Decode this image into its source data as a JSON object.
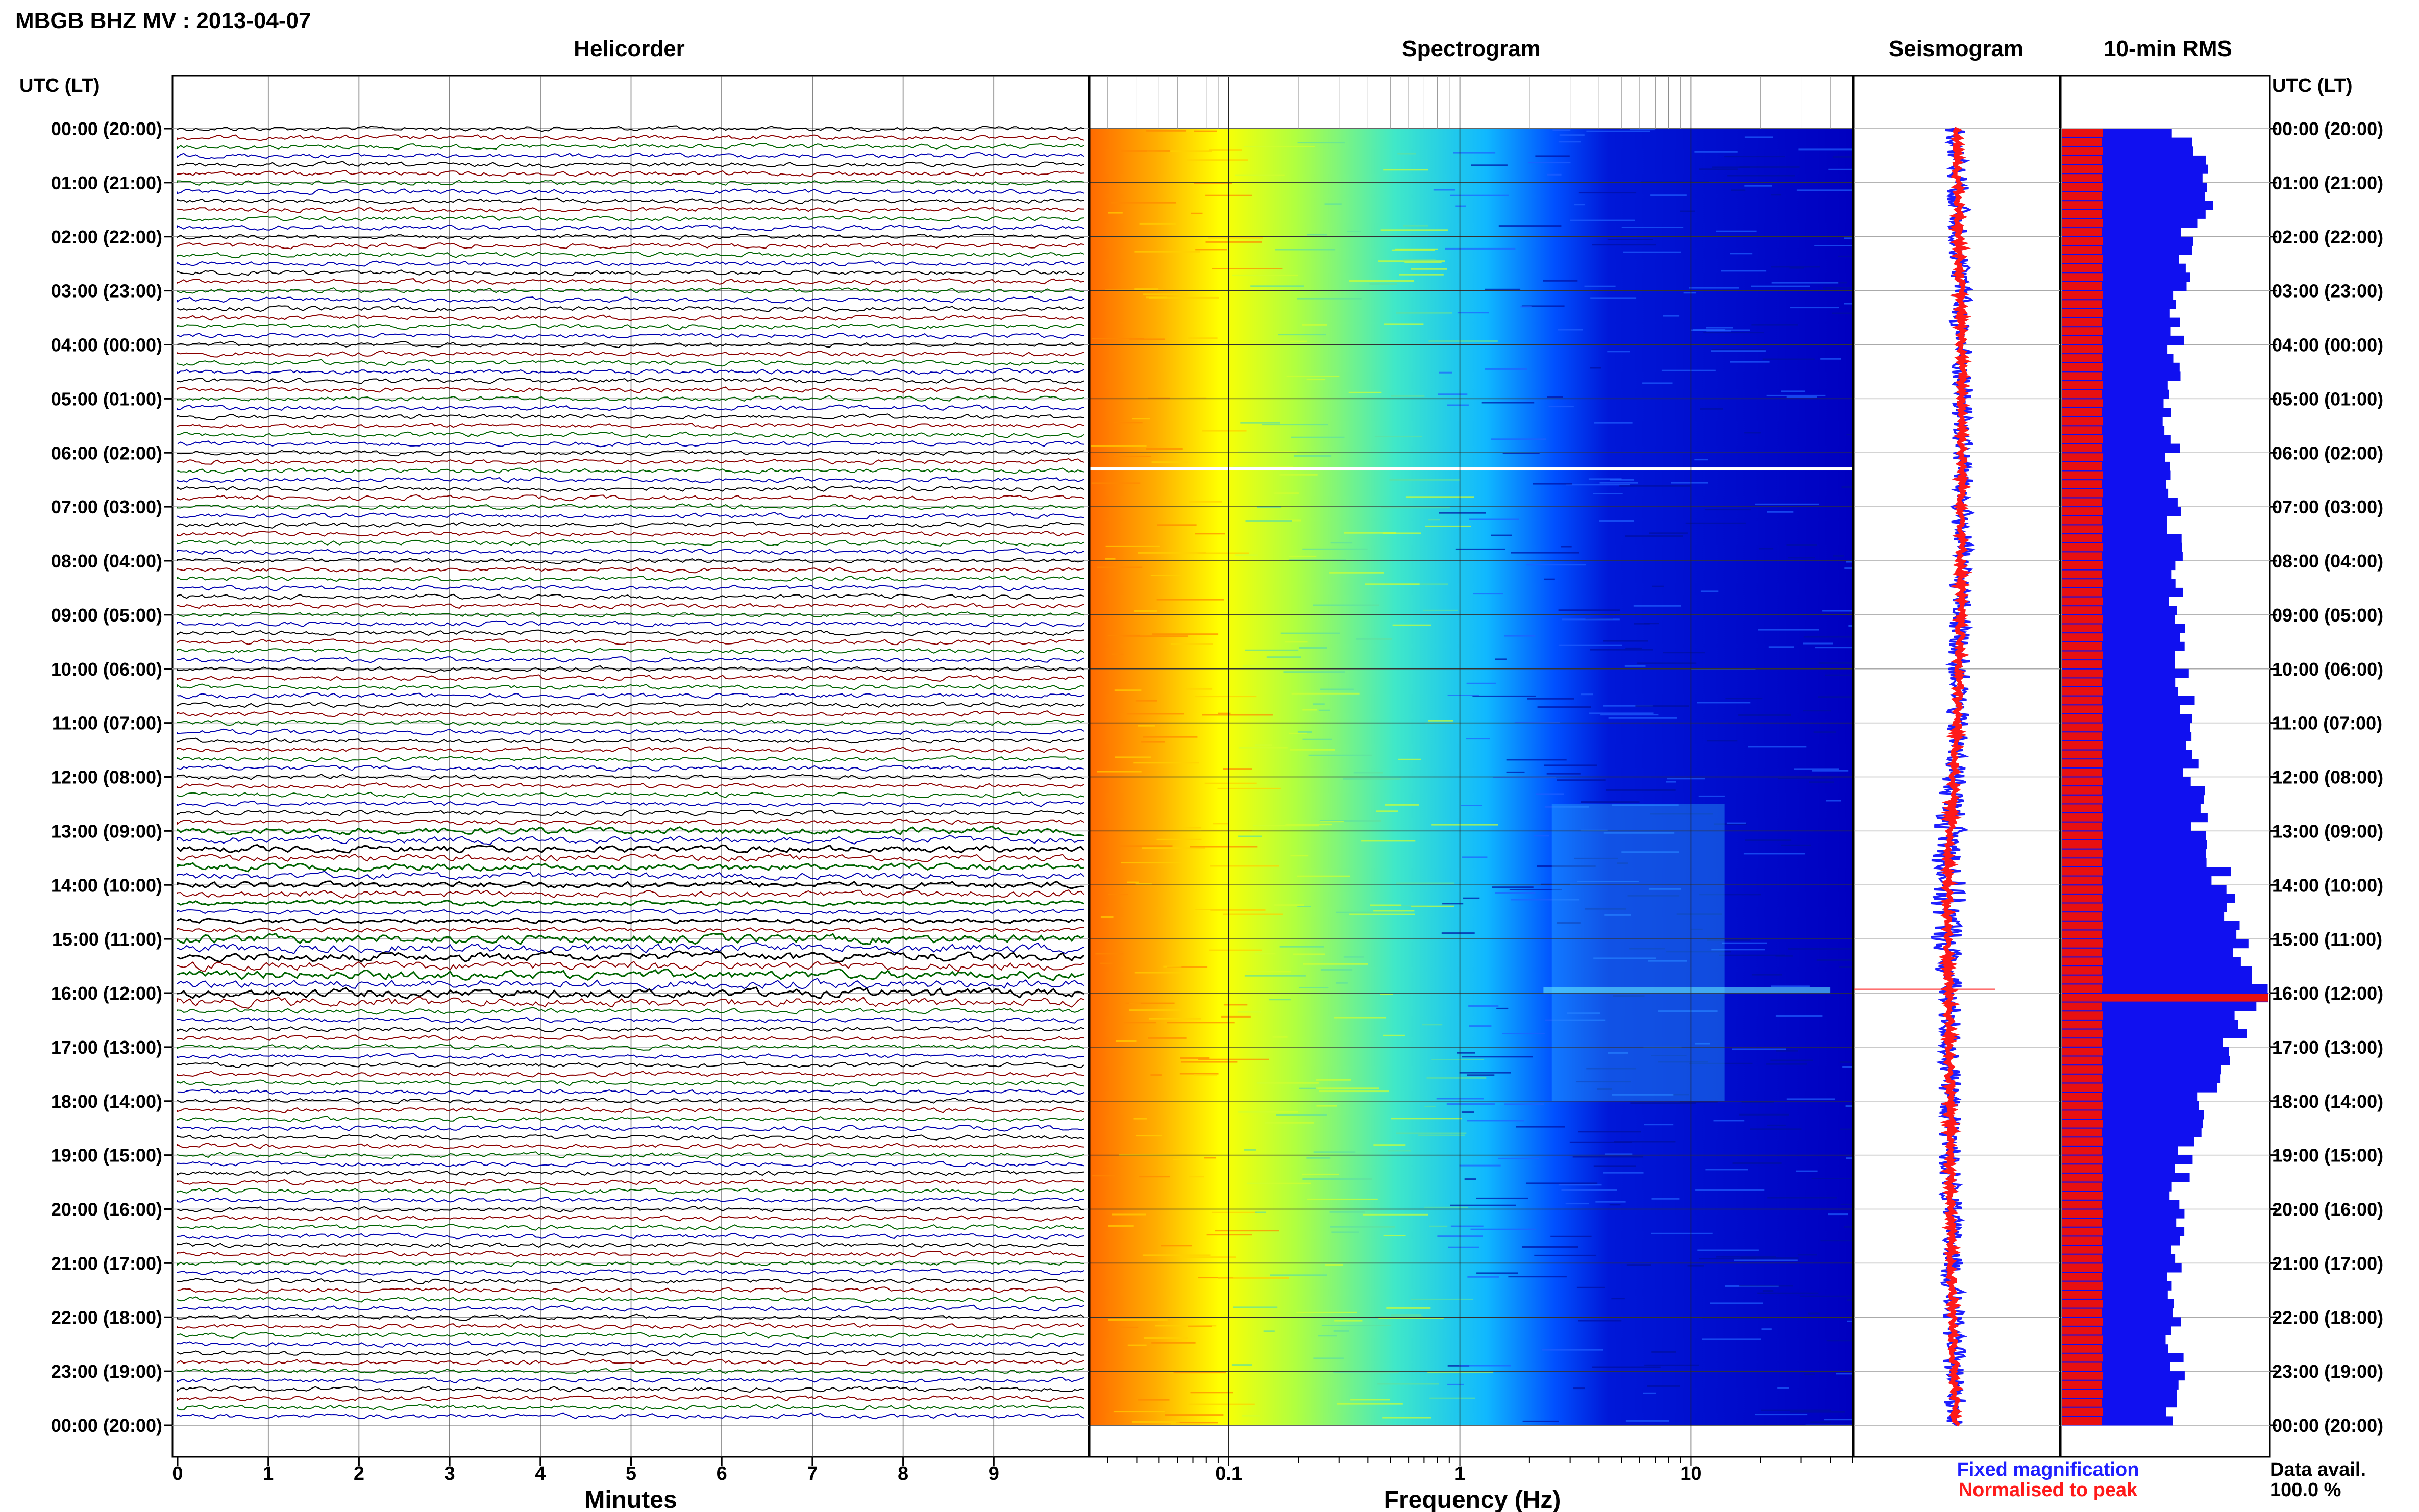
{
  "title": "MBGB BHZ MV : 2013-04-07",
  "panels": {
    "helicorder": "Helicorder",
    "spectrogram": "Spectrogram",
    "seismogram": "Seismogram",
    "rms": "10-min RMS"
  },
  "axis": {
    "left_header": "UTC (LT)",
    "right_header": "UTC (LT)",
    "helicorder_xlabel": "Minutes",
    "spectrogram_xlabel": "Frequency (Hz)"
  },
  "legend": {
    "fixed": "Fixed magnification",
    "normalised": "Normalised to peak",
    "fixed_color": "#1f1fff",
    "normalised_color": "#ff1a1a"
  },
  "data_avail": {
    "label": "Data avail.",
    "value": "100.0 %"
  },
  "colors": {
    "trace_cycle": [
      "#000000",
      "#8b0000",
      "#006400",
      "#0000b0"
    ],
    "rms_fixed": "#1010f0",
    "rms_normalised": "#e81010"
  },
  "chart_data": [
    {
      "type": "line",
      "panel": "Helicorder",
      "xlabel": "Minutes",
      "x_ticks": [
        "0",
        "1",
        "2",
        "3",
        "4",
        "5",
        "6",
        "7",
        "8",
        "9"
      ],
      "xlim": [
        0,
        10
      ],
      "rows": 144,
      "row_minutes": 10,
      "y_ticks": [
        "00:00 (20:00)",
        "01:00 (21:00)",
        "02:00 (22:00)",
        "03:00 (23:00)",
        "04:00 (00:00)",
        "05:00 (01:00)",
        "06:00 (02:00)",
        "07:00 (03:00)",
        "08:00 (04:00)",
        "09:00 (05:00)",
        "10:00 (06:00)",
        "11:00 (07:00)",
        "12:00 (08:00)",
        "13:00 (09:00)",
        "14:00 (10:00)",
        "15:00 (11:00)",
        "16:00 (12:00)",
        "17:00 (13:00)",
        "18:00 (14:00)",
        "19:00 (15:00)",
        "20:00 (16:00)",
        "21:00 (17:00)",
        "22:00 (18:00)",
        "23:00 (19:00)",
        "00:00 (20:00)"
      ]
    },
    {
      "type": "heatmap",
      "panel": "Spectrogram",
      "xlabel": "Frequency (Hz)",
      "x_scale": "log",
      "x_ticks": [
        "0.1",
        "1",
        "10"
      ],
      "xlim": [
        0.025,
        50
      ],
      "colormap": [
        "#ff6a00",
        "#ffb000",
        "#ffff00",
        "#a0ff50",
        "#30e0d0",
        "#00a0ff",
        "#0030ff",
        "#0000b0"
      ],
      "data_gap_hour_utc": 6.3,
      "elevated_energy_hours_utc": [
        12.5,
        18
      ]
    },
    {
      "type": "line",
      "panel": "Seismogram",
      "series": [
        {
          "name": "Fixed magnification",
          "color": "#1f1fff"
        },
        {
          "name": "Normalised to peak",
          "color": "#ff1a1a"
        }
      ]
    },
    {
      "type": "bar",
      "panel": "10-min RMS",
      "orientation": "horizontal",
      "series": [
        {
          "name": "Fixed magnification",
          "color": "#1010f0",
          "hourly_length": [
            0.6,
            0.78,
            0.62,
            0.6,
            0.58,
            0.55,
            0.56,
            0.57,
            0.58,
            0.58,
            0.62,
            0.64,
            0.67,
            0.72,
            0.85,
            0.92,
            1.0,
            0.85,
            0.72,
            0.62,
            0.58,
            0.58,
            0.57,
            0.58,
            0.56
          ]
        },
        {
          "name": "Normalised to peak",
          "color": "#e81010",
          "hourly_length": [
            0.2,
            0.2,
            0.2,
            0.2,
            0.2,
            0.2,
            0.2,
            0.2,
            0.2,
            0.2,
            0.2,
            0.2,
            0.2,
            0.2,
            0.2,
            0.2,
            0.2,
            0.2,
            0.2,
            0.2,
            0.2,
            0.2,
            0.2,
            0.2,
            0.2
          ]
        }
      ],
      "peak_hour_utc": 15.93
    }
  ]
}
